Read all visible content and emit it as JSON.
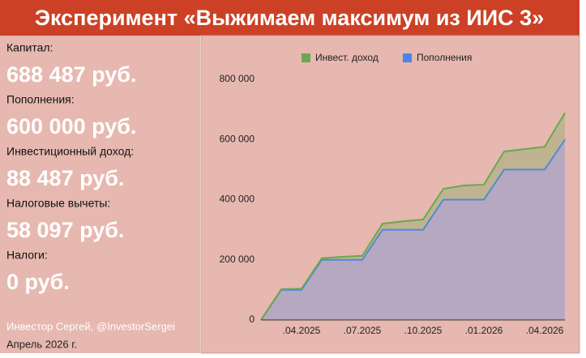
{
  "header": {
    "title": "Эксперимент «Выжимаем максимум из ИИС 3»"
  },
  "stats": [
    {
      "label": "Капитал:",
      "value": "688 487 руб."
    },
    {
      "label": "Пополнения:",
      "value": "600 000 руб."
    },
    {
      "label": "Инвестиционный доход:",
      "value": "88 487 руб."
    },
    {
      "label": "Налоговые вычеты:",
      "value": "58 097 руб."
    },
    {
      "label": "Налоги:",
      "value": "0 руб."
    }
  ],
  "footer": {
    "author": "Инвестор Сергей, @InvestorSergei",
    "date": "Апрель 2026 г."
  },
  "chart_data": {
    "type": "stacked_area",
    "categories": [
      null,
      null,
      ".04.2025",
      null,
      null,
      ".07.2025",
      null,
      null,
      ".10.2025",
      null,
      null,
      ".01.2026",
      null,
      null,
      ".04.2026",
      null
    ],
    "series": [
      {
        "name": "Пополнения",
        "color": "#4a86e8",
        "values": [
          0,
          100000,
          100000,
          200000,
          200000,
          200000,
          300000,
          300000,
          300000,
          400000,
          400000,
          400000,
          500000,
          500000,
          500000,
          600000
        ]
      },
      {
        "name": "Инвест. доход",
        "color": "#6aa84f",
        "values": [
          0,
          2000,
          4000,
          5000,
          10000,
          13000,
          20000,
          28000,
          34000,
          36000,
          47000,
          50000,
          60000,
          68000,
          76000,
          88487
        ]
      }
    ],
    "ylim": [
      0,
      800000
    ],
    "yticks": [
      {
        "value": 0,
        "label": "0"
      },
      {
        "value": 200000,
        "label": "200 000"
      },
      {
        "value": 400000,
        "label": "400 000"
      },
      {
        "value": 600000,
        "label": "600 000"
      },
      {
        "value": 800000,
        "label": "800 000"
      }
    ],
    "grid": false,
    "legend": "top"
  }
}
